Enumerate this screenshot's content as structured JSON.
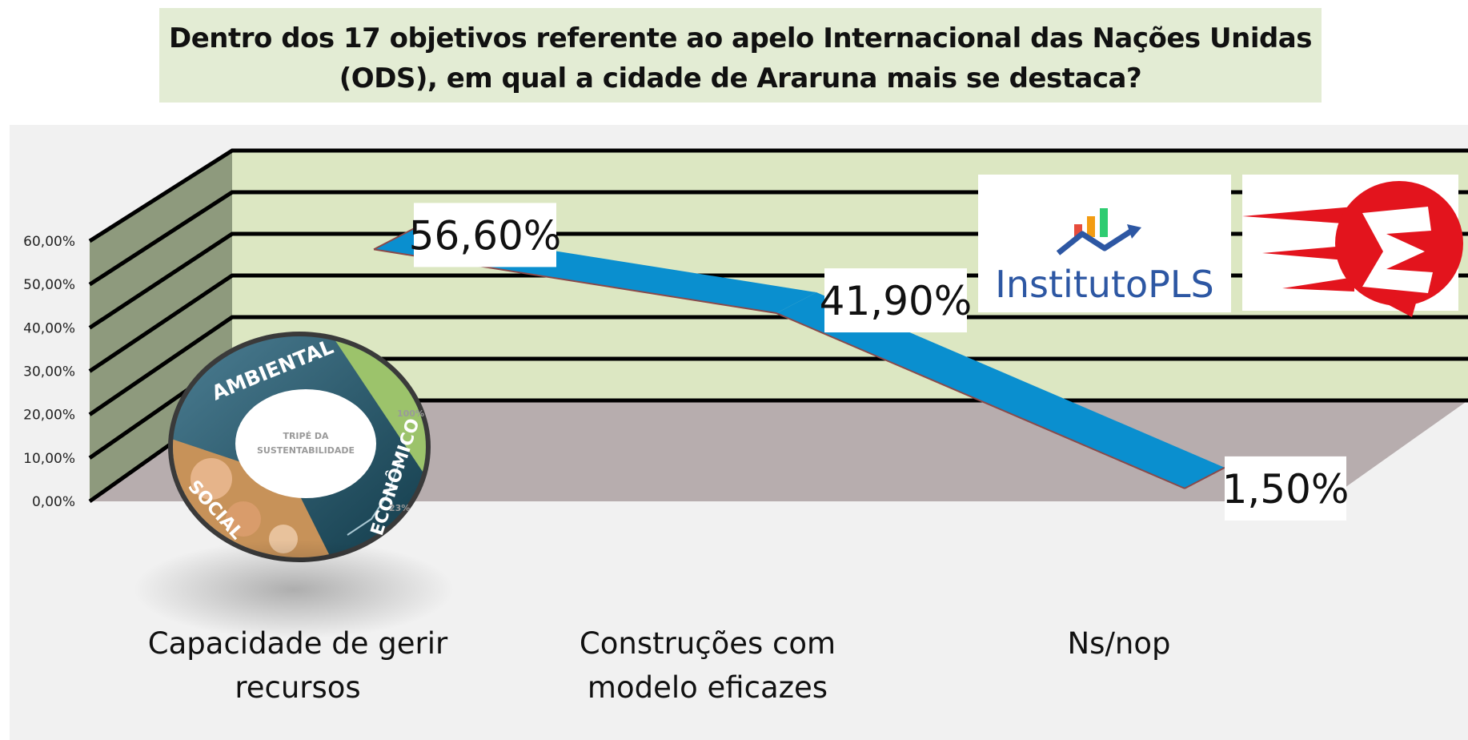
{
  "title": {
    "line1": "Dentro dos 17 objetivos referente ao apelo Internacional das Nações Unidas",
    "line2": "(ODS), em qual a cidade de Araruna mais se destaca?"
  },
  "colors": {
    "title_background": "#e3ecd4",
    "panel_background": "#f1f1f1",
    "back_wall": "#dce7c2",
    "side_wall": "#8e9a7d",
    "floor": "#b7adae",
    "ribbon": "#0a8fcf",
    "ribbon_edge": "#8a4a4a"
  },
  "chart_data": {
    "type": "line",
    "style": "3d-ribbon",
    "categories": [
      "Capacidade de gerir recursos",
      "Construções com modelo eficazes",
      "Ns/nop"
    ],
    "category_lines": [
      [
        "Capacidade de gerir",
        "recursos"
      ],
      [
        "Construções com",
        "modelo eficazes"
      ],
      [
        "Ns/nop"
      ]
    ],
    "values": [
      56.6,
      41.9,
      1.5
    ],
    "data_labels": [
      "56,60%",
      "41,90%",
      "1,50%"
    ],
    "ylim": [
      0,
      60
    ],
    "yticks": [
      0,
      10,
      20,
      30,
      40,
      50,
      60
    ],
    "ytick_labels": [
      "0,00%",
      "10,00%",
      "20,00%",
      "30,00%",
      "40,00%",
      "50,00%",
      "60,00%"
    ],
    "grid": true,
    "legend": "none"
  },
  "logos": {
    "institute": {
      "name": "InstitutoPLS",
      "icon": "rising-bar-chart-arrow-icon"
    },
    "partner": {
      "icon": "red-speech-bubble-e-logo"
    }
  },
  "badge": {
    "icon": "sustainability-tripod-badge",
    "center_lines": [
      "TRIPÉ DA",
      "SUSTENTABILIDADE"
    ],
    "words": [
      "AMBIENTAL",
      "ECONÔMICO",
      "SOCIAL"
    ],
    "small_marks": [
      "100%",
      "23%"
    ]
  }
}
